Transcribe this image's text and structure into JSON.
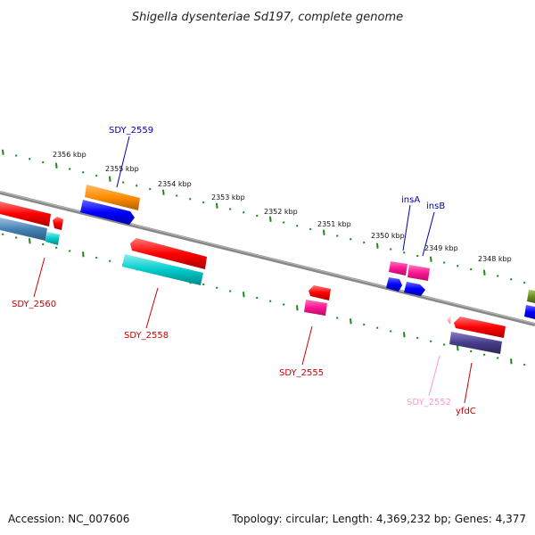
{
  "title": "Shigella dysenteriae Sd197, complete genome",
  "footer": {
    "accession": "Accession: NC_007606",
    "topology": "Topology: circular; Length: 4,369,232 bp; Genes: 4,377"
  },
  "colors": {
    "backbone": "#808080",
    "tick": "#1a8a1a",
    "label_forward": "#0000aa",
    "label_reverse": "#cc0000",
    "label_pseudo": "#ff99cc"
  },
  "ticks": [
    {
      "label": "2356 kbp"
    },
    {
      "label": "2355 kbp"
    },
    {
      "label": "2354 kbp"
    },
    {
      "label": "2353 kbp"
    },
    {
      "label": "2352 kbp"
    },
    {
      "label": "2351 kbp"
    },
    {
      "label": "2350 kbp"
    },
    {
      "label": "2349 kbp"
    },
    {
      "label": "2348 kbp"
    }
  ],
  "genes": [
    {
      "name": "SDY_2559",
      "strand": "forward",
      "color": "#ff8c00"
    },
    {
      "name": "insA",
      "strand": "forward",
      "color": "#ff1493"
    },
    {
      "name": "insB",
      "strand": "forward",
      "color": "#ff1493"
    },
    {
      "name": "SDY_2560",
      "strand": "reverse",
      "color": "#ff0000"
    },
    {
      "name": "SDY_2558",
      "strand": "reverse",
      "color": "#ff0000"
    },
    {
      "name": "SDY_2555",
      "strand": "reverse",
      "color": "#ff0000"
    },
    {
      "name": "SDY_2552",
      "strand": "reverse",
      "color": "#ffb6c1"
    },
    {
      "name": "yfdC",
      "strand": "reverse",
      "color": "#ff0000"
    }
  ],
  "feature_colors": {
    "cds": "#0000ff",
    "gene_orange": "#ff8c00",
    "gene_red": "#ff0000",
    "gene_pink": "#ff1493",
    "gene_cyan": "#00cccc",
    "gene_steel": "#4682b4",
    "gene_slate": "#483d8b",
    "gene_olive": "#6b8e23"
  }
}
